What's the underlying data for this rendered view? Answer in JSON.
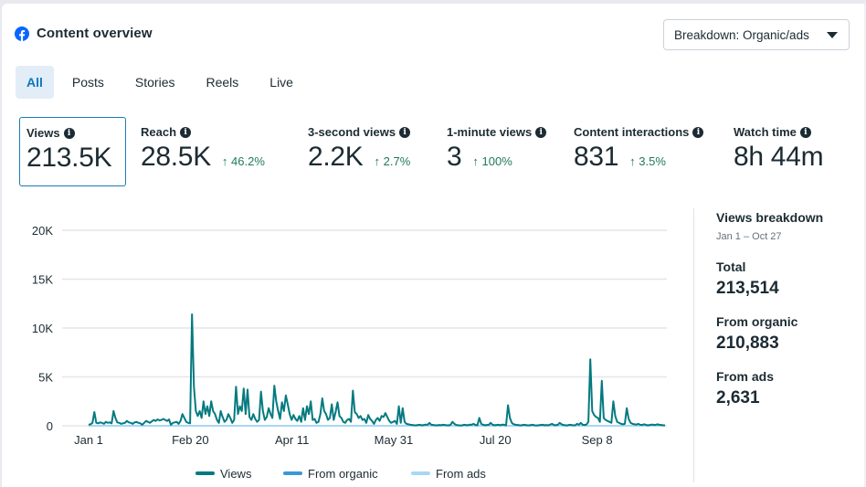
{
  "header": {
    "title": "Content overview",
    "breakdown_button": "Breakdown: Organic/ads",
    "brand_color": "#0866ff"
  },
  "tabs": [
    {
      "label": "All",
      "active": true
    },
    {
      "label": "Posts",
      "active": false
    },
    {
      "label": "Stories",
      "active": false
    },
    {
      "label": "Reels",
      "active": false
    },
    {
      "label": "Live",
      "active": false
    }
  ],
  "metrics": [
    {
      "label": "Views",
      "value": "213.5K",
      "change": "",
      "active": true
    },
    {
      "label": "Reach",
      "value": "28.5K",
      "change": "↑ 46.2%",
      "active": false
    },
    {
      "label": "3-second views",
      "value": "2.2K",
      "change": "↑ 2.7%",
      "active": false
    },
    {
      "label": "1-minute views",
      "value": "3",
      "change": "↑ 100%",
      "active": false
    },
    {
      "label": "Content interactions",
      "value": "831",
      "change": "↑ 3.5%",
      "active": false
    },
    {
      "label": "Watch time",
      "value": "8h 44m",
      "change": "",
      "active": false
    }
  ],
  "breakdown": {
    "title": "Views breakdown",
    "range": "Jan 1 – Oct 27",
    "items": [
      {
        "label": "Total",
        "value": "213,514"
      },
      {
        "label": "From organic",
        "value": "210,883"
      },
      {
        "label": "From ads",
        "value": "2,631"
      }
    ]
  },
  "chart_data": {
    "type": "line",
    "title": "",
    "xlabel": "",
    "ylabel": "",
    "ylim": [
      0,
      20000
    ],
    "yticks": [
      0,
      5000,
      10000,
      15000,
      20000
    ],
    "ytick_labels": [
      "0",
      "5K",
      "10K",
      "15K",
      "20K"
    ],
    "xtick_labels": [
      "Jan 1",
      "Feb 20",
      "Apr 11",
      "May 31",
      "Jul 20",
      "Sep 8"
    ],
    "xtick_day_index": [
      0,
      50,
      100,
      150,
      200,
      250
    ],
    "x_days_total": 300,
    "grid": true,
    "legend": "bottom-center",
    "series": [
      {
        "name": "Views",
        "color": "#047a80",
        "values": [
          100,
          150,
          300,
          1400,
          300,
          250,
          350,
          300,
          200,
          400,
          300,
          350,
          250,
          1500,
          800,
          350,
          300,
          200,
          250,
          300,
          500,
          350,
          300,
          200,
          350,
          400,
          300,
          250,
          100,
          300,
          500,
          400,
          300,
          450,
          600,
          500,
          650,
          550,
          600,
          700,
          600,
          500,
          650,
          100,
          300,
          350,
          400,
          200,
          500,
          1200,
          800,
          400,
          300,
          250,
          11400,
          4000,
          1500,
          1000,
          1500,
          800,
          2500,
          1200,
          2000,
          1000,
          2500,
          1500,
          1200,
          600,
          300,
          1500,
          900,
          400,
          600,
          1200,
          800,
          300,
          600,
          4000,
          1200,
          2000,
          1500,
          3800,
          1200,
          3700,
          900,
          600,
          1200,
          700,
          400,
          600,
          3500,
          1500,
          600,
          900,
          1800,
          1200,
          800,
          4100,
          2500,
          1500,
          700,
          2400,
          1500,
          3100,
          2200,
          1200,
          600,
          1100,
          700,
          500,
          1000,
          400,
          1800,
          600,
          2000,
          1200,
          2500,
          600,
          700,
          300,
          400,
          1200,
          2800,
          1500,
          1200,
          600,
          800,
          2200,
          600,
          1400,
          2400,
          1000,
          800,
          400,
          300,
          600,
          700,
          400,
          3600,
          1400,
          1200,
          800,
          1000,
          600,
          700,
          300,
          1100,
          700,
          500,
          200,
          600,
          800,
          500,
          1000,
          900,
          1300,
          900,
          500,
          300,
          400,
          500,
          200,
          2000,
          300,
          1800,
          400,
          200,
          150,
          100,
          80,
          60,
          50,
          80,
          100,
          50,
          80,
          120,
          100,
          300,
          100,
          80,
          60,
          50,
          80,
          60,
          100,
          80,
          60,
          50,
          100,
          400,
          200,
          80,
          60,
          40,
          50,
          100,
          80,
          60,
          120,
          100,
          200,
          80,
          60,
          800,
          200,
          100,
          60,
          80,
          100,
          300,
          100,
          60,
          80,
          100,
          60,
          120,
          100,
          50,
          2100,
          800,
          300,
          150,
          100,
          80,
          60,
          50,
          100,
          80,
          60,
          50,
          80,
          100,
          50,
          40,
          60,
          80,
          100,
          60,
          80,
          50,
          120,
          200,
          80,
          60,
          100,
          300,
          150,
          80,
          60,
          40,
          100,
          80,
          60,
          50,
          200,
          100,
          300,
          100,
          80,
          120,
          400,
          6800,
          1500,
          1100,
          900,
          800,
          400,
          4600,
          800,
          600,
          500,
          400,
          300,
          2500,
          1000,
          400,
          300,
          200,
          150,
          200,
          1800,
          700,
          300,
          200,
          150,
          120,
          200,
          100,
          80,
          150,
          100,
          50,
          80,
          120,
          100,
          80,
          150,
          100,
          80,
          60,
          50
        ]
      },
      {
        "name": "From organic",
        "color": "#3a98d8",
        "values": "≈ Views (210,883 total)"
      },
      {
        "name": "From ads",
        "color": "#a6d8f5",
        "values": "near 0 (2,631 total)"
      }
    ]
  }
}
